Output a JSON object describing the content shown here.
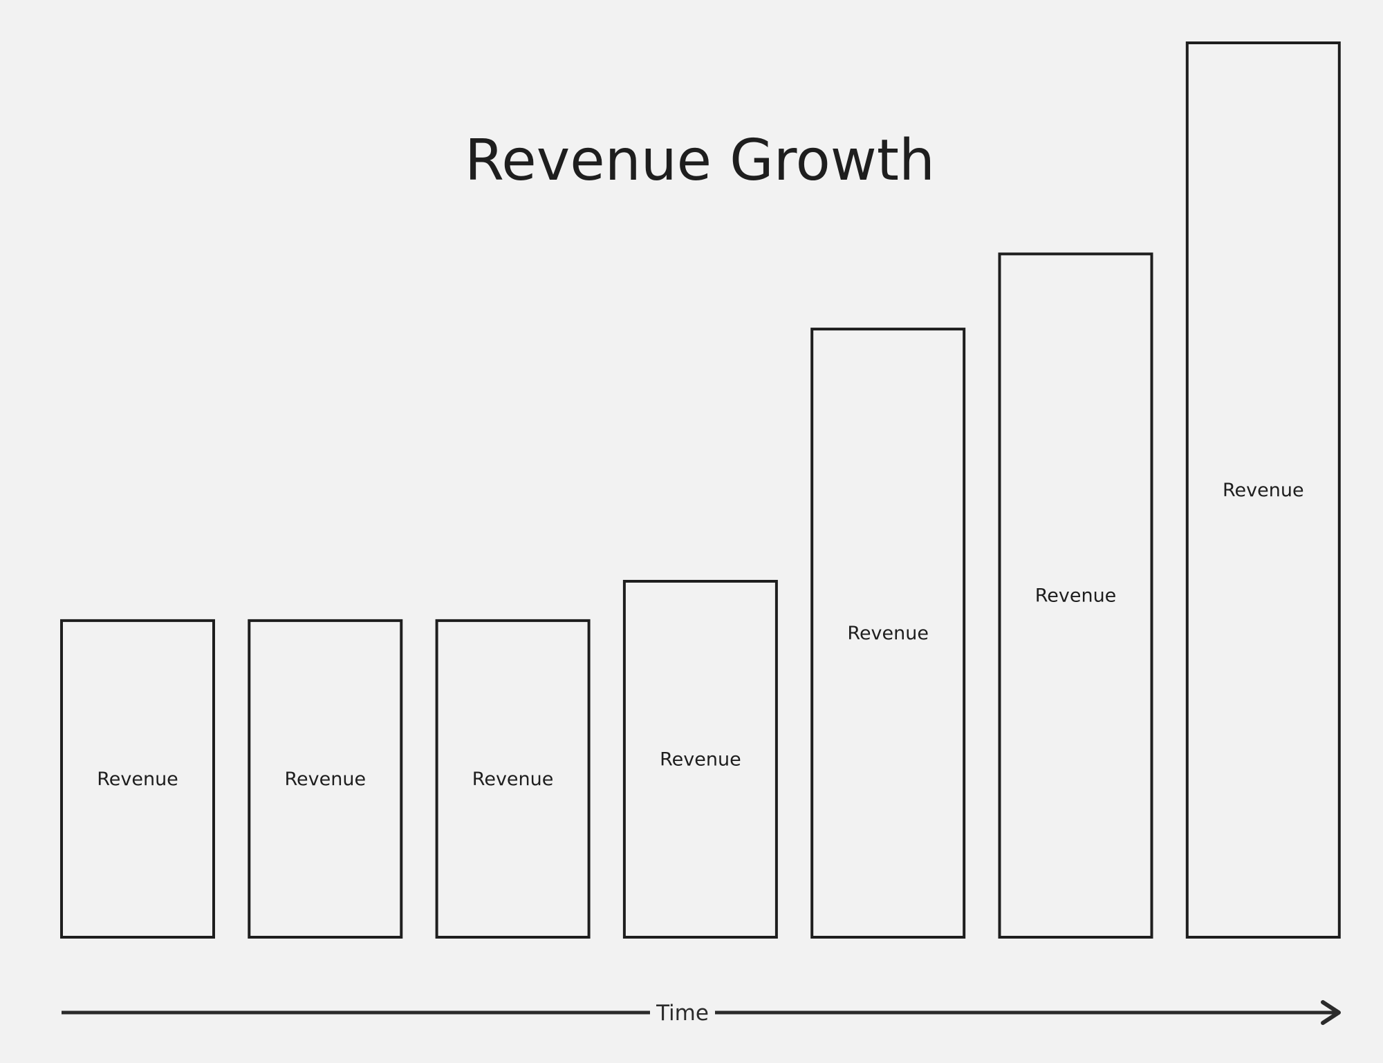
{
  "chart_data": {
    "type": "bar",
    "title": "Revenue Growth",
    "xlabel": "Time",
    "ylabel": "",
    "categories": [
      "",
      "",
      "",
      "",
      "",
      "",
      ""
    ],
    "bar_labels": [
      "Revenue",
      "Revenue",
      "Revenue",
      "Revenue",
      "Revenue",
      "Revenue",
      "Revenue"
    ],
    "values": [
      35.4,
      35.4,
      35.4,
      39.8,
      68.0,
      76.4,
      100
    ],
    "ylim": [
      0,
      100
    ],
    "grid": false,
    "legend": "none",
    "colors": {
      "background": "#f2f2f2",
      "stroke": "#1e1e1e",
      "axis": "#2b2b2b"
    }
  }
}
